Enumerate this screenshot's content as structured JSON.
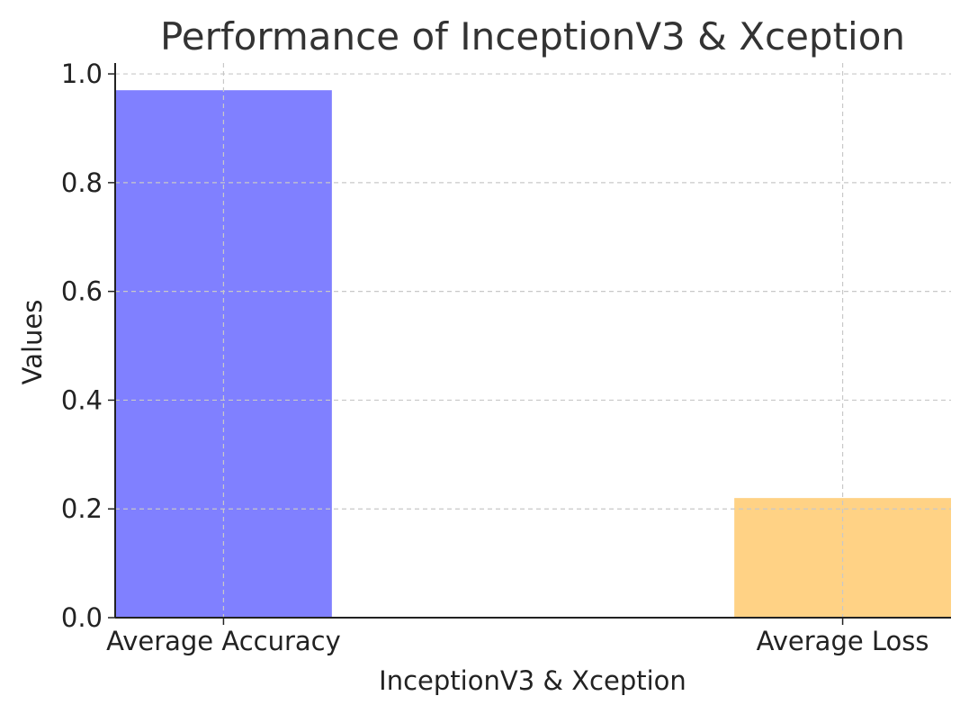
{
  "chart_data": {
    "type": "bar",
    "title": "Performance of InceptionV3 & Xception",
    "xlabel": "InceptionV3 & Xception",
    "ylabel": "Values",
    "categories": [
      "Average Accuracy",
      "Average Loss"
    ],
    "values": [
      0.97,
      0.22
    ],
    "colors": [
      "#8080ff",
      "#ffd285"
    ],
    "ylim": [
      0,
      1.02
    ],
    "yticks": [
      0.0,
      0.2,
      0.4,
      0.6,
      0.8,
      1.0
    ],
    "ytick_labels": [
      "0.0",
      "0.2",
      "0.4",
      "0.6",
      "0.8",
      "1.0"
    ],
    "grid": true,
    "legend": false
  }
}
